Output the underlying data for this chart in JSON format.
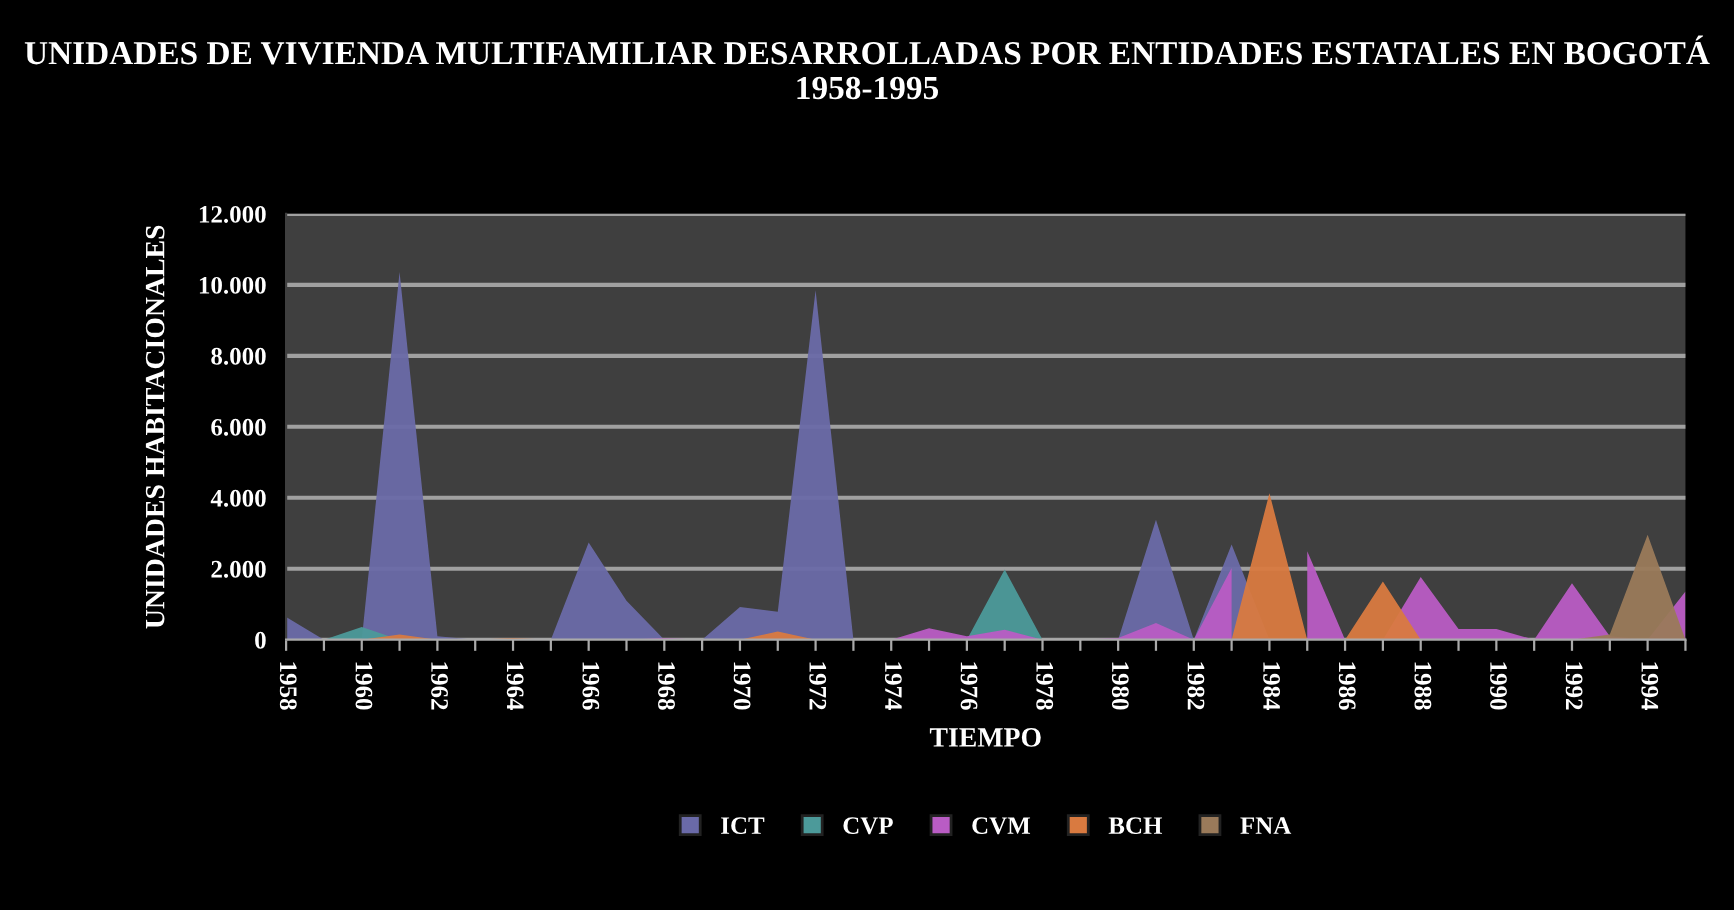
{
  "chart_data": {
    "type": "area",
    "title": "UNIDADES DE VIVIENDA MULTIFAMILIAR DESARROLLADAS POR ENTIDADES ESTATALES EN BOGOTÁ 1958-1995",
    "xlabel": "TIEMPO",
    "ylabel": "UNIDADES HABITACIONALES",
    "categories": [
      "1958",
      null,
      "1960",
      null,
      "1962",
      null,
      "1964",
      null,
      "1966",
      null,
      "1968",
      null,
      "1970",
      null,
      "1972",
      null,
      "1974",
      null,
      "1976",
      null,
      "1978",
      null,
      "1980",
      null,
      "1982",
      null,
      "1984",
      null,
      "1986",
      null,
      "1988",
      null,
      "1990",
      null,
      "1992",
      null,
      "1994",
      null
    ],
    "series": [
      {
        "name": "ICT",
        "color": "#6a6aa8",
        "values": [
          640,
          0,
          0,
          10360,
          100,
          0,
          0,
          0,
          2740,
          1100,
          0,
          0,
          920,
          790,
          9850,
          0,
          0,
          0,
          0,
          null,
          0,
          0,
          0,
          3380,
          0,
          2680,
          0,
          0,
          0,
          0,
          0,
          0,
          0,
          0,
          0,
          0,
          0,
          0
        ]
      },
      {
        "name": "CVP",
        "color": "#4c9a9a",
        "values": [
          0,
          0,
          360,
          0,
          0,
          0,
          0,
          0,
          0,
          0,
          0,
          0,
          0,
          0,
          0,
          0,
          0,
          0,
          0,
          1980,
          0,
          0,
          0,
          0,
          0,
          0,
          0,
          0,
          0,
          0,
          0,
          0,
          0,
          0,
          0,
          0,
          0,
          0
        ]
      },
      {
        "name": "CVM",
        "color": "#b95cc4",
        "values": [
          0,
          0,
          0,
          0,
          0,
          0,
          0,
          0,
          0,
          0,
          50,
          0,
          0,
          0,
          0,
          0,
          0,
          320,
          100,
          280,
          0,
          0,
          50,
          470,
          0,
          2020,
          null,
          2490,
          0,
          0,
          1770,
          300,
          300,
          0,
          1590,
          100,
          0,
          1360
        ]
      },
      {
        "name": "BCH",
        "color": "#d97a40",
        "values": [
          0,
          0,
          0,
          150,
          0,
          0,
          50,
          0,
          0,
          0,
          0,
          0,
          0,
          230,
          0,
          0,
          0,
          0,
          0,
          0,
          0,
          0,
          0,
          0,
          0,
          0,
          4130,
          0,
          0,
          1640,
          0,
          0,
          0,
          0,
          0,
          0,
          0,
          0
        ]
      },
      {
        "name": "FNA",
        "color": "#9a7a5a",
        "values": [
          0,
          0,
          0,
          0,
          0,
          0,
          0,
          0,
          0,
          0,
          0,
          0,
          0,
          0,
          0,
          0,
          0,
          0,
          0,
          0,
          0,
          0,
          0,
          0,
          0,
          0,
          0,
          0,
          0,
          0,
          0,
          0,
          0,
          0,
          0,
          150,
          2960,
          0
        ]
      }
    ],
    "ylim": [
      0,
      12000
    ],
    "yticks": [
      0,
      {
        "value": 2000,
        "label": "2.000"
      },
      {
        "value": 4000,
        "label": "4.000"
      },
      {
        "value": 6000,
        "label": "6.000"
      },
      {
        "value": 8000,
        "label": "8.000"
      },
      {
        "value": 10000,
        "label": "10.000"
      },
      {
        "value": 12000,
        "label": "12.000"
      }
    ],
    "grid": "y",
    "legend": "bottom"
  }
}
